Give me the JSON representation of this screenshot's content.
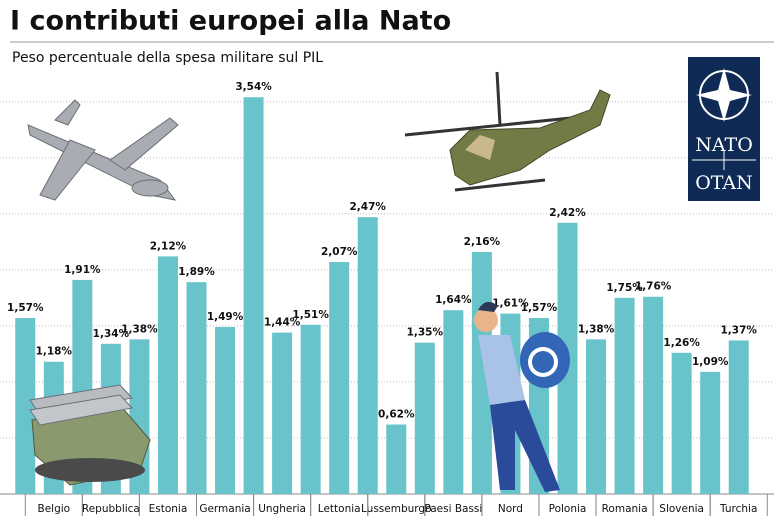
{
  "chart_data": {
    "type": "bar",
    "title": "I contributi europei alla Nato",
    "subtitle": "Peso percentuale della spesa militare sul PIL",
    "logo_texts": [
      "NATO",
      "OTAN"
    ],
    "categories": [
      null,
      "Belgio",
      null,
      "Repubblica",
      null,
      "Estonia",
      null,
      "Germania",
      null,
      "Ungheria",
      null,
      "Lettonia",
      null,
      "Lussemburgo",
      null,
      "Paesi Bassi",
      null,
      "Nord",
      null,
      "Polonia",
      null,
      "Romania",
      null,
      "Slovenia",
      null,
      "Turchia"
    ],
    "values": [
      1.57,
      1.18,
      1.91,
      1.34,
      1.38,
      2.12,
      1.89,
      1.49,
      3.54,
      1.44,
      1.51,
      2.07,
      2.47,
      0.62,
      1.35,
      1.64,
      2.16,
      1.61,
      1.57,
      2.42,
      1.38,
      1.75,
      1.76,
      1.26,
      1.09,
      1.37
    ],
    "value_labels": [
      "1,57%",
      "1,18%",
      "1,91%",
      "1,34%",
      "1,38%",
      "2,12%",
      "1,89%",
      "1,49%",
      "3,54%",
      "1,44%",
      "1,51%",
      "2,07%",
      "2,47%",
      "0,62%",
      "1,35%",
      "1,64%",
      "2,16%",
      "1,61%",
      "1,57%",
      "2,42%",
      "1,38%",
      "1,75%",
      "1,76%",
      "1,26%",
      "1,09%",
      "1,37%"
    ],
    "color": "#68c3cb",
    "ylim": [
      0,
      3.55
    ],
    "yticks": [
      0.5,
      1,
      1.5,
      2,
      2.5,
      3,
      3.5
    ],
    "grid": true
  }
}
